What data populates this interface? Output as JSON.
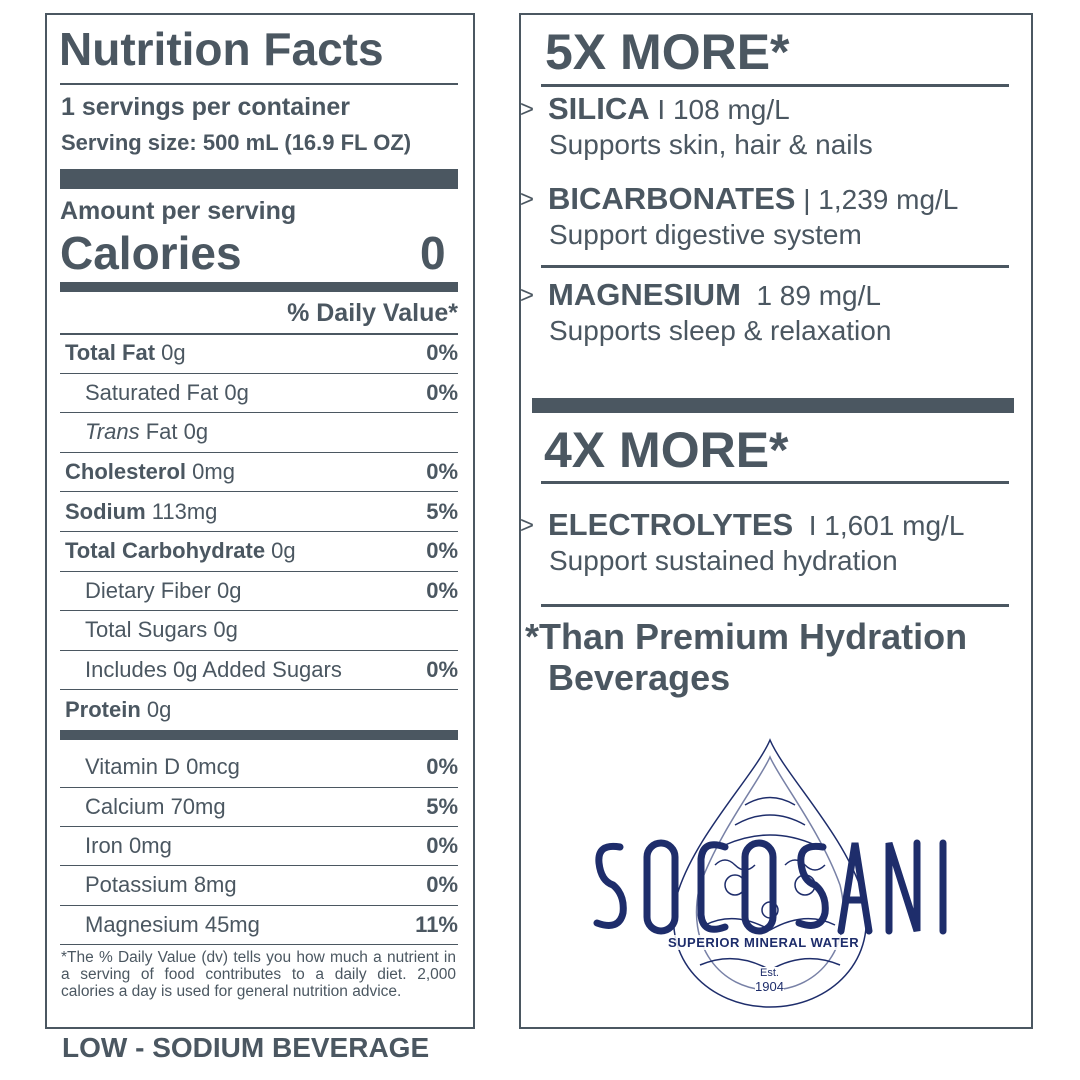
{
  "label": {
    "title": "Nutrition Facts",
    "servings": "1 servings per container",
    "serving_size": "Serving size: 500 mL (16.9 FL OZ)",
    "amount_per_serving": "Amount per serving",
    "calories_label": "Calories",
    "calories_value": "0",
    "daily_value_header": "% Daily Value*",
    "nutrients": [
      {
        "name": "Total Fat",
        "amount": " 0g",
        "dv": "0%",
        "bold": true
      },
      {
        "name": "Saturated Fat 0g",
        "amount": "",
        "dv": "0%",
        "bold": false
      },
      {
        "name": "Trans",
        "amount": " Fat 0g",
        "dv": "",
        "bold": false,
        "italic": true
      },
      {
        "name": "Cholesterol",
        "amount": " 0mg",
        "dv": "0%",
        "bold": true
      },
      {
        "name": "Sodium",
        "amount": " 113mg",
        "dv": "5%",
        "bold": true
      },
      {
        "name": "Total Carbohydrate",
        "amount": " 0g",
        "dv": "0%",
        "bold": true
      },
      {
        "name": "Dietary Fiber 0g",
        "amount": "",
        "dv": "0%",
        "bold": false
      },
      {
        "name": "Total Sugars 0g",
        "amount": "",
        "dv": "",
        "bold": false
      },
      {
        "name": "Includes 0g Added Sugars",
        "amount": "",
        "dv": "0%",
        "bold": false
      },
      {
        "name": "Protein",
        "amount": " 0g",
        "dv": "",
        "bold": true
      }
    ],
    "vitamins": [
      {
        "name": "Vitamin D 0mcg",
        "dv": "0%"
      },
      {
        "name": "Calcium 70mg",
        "dv": "5%"
      },
      {
        "name": "Iron 0mg",
        "dv": "0%"
      },
      {
        "name": "Potassium 8mg",
        "dv": "0%"
      },
      {
        "name": "Magnesium 45mg",
        "dv": "11%"
      }
    ],
    "footnote": "*The % Daily Value (dv) tells you how much a nutrient in a serving of food contributes to a daily diet. 2,000 calories a day is used for general nutrition advice.",
    "bottom_caption": "LOW - SODIUM BEVERAGE"
  },
  "benefits": {
    "heading_1": "5X MORE*",
    "group_1": [
      {
        "name": "SILICA",
        "sep": " I ",
        "value": "108 mg/L",
        "desc": "Supports skin, hair & nails"
      },
      {
        "name": "BICARBONATES",
        "sep": " | ",
        "value": "1,239 mg/L",
        "desc": "Support digestive system"
      },
      {
        "name": "MAGNESIUM",
        "sep": "  ",
        "value": "1 89 mg/L",
        "desc": "Supports sleep & relaxation"
      }
    ],
    "heading_2": "4X MORE*",
    "group_2": [
      {
        "name": "ELECTROLYTES",
        "sep": "  I ",
        "value": "1,601 mg/L",
        "desc": "Support sustained hydration"
      }
    ],
    "arrow": ">",
    "comparison_note_1": "*Than Premium Hydration",
    "comparison_note_2": "Beverages"
  },
  "logo": {
    "brand": "SOCOSANI",
    "tagline": "SUPERIOR MINERAL WATER",
    "est": "Est.",
    "year": "1904",
    "color": "#1e2d6b",
    "icon": "ornamental-water-drop"
  },
  "colors": {
    "text": "#4b5761",
    "logo": "#1e2d6b"
  }
}
